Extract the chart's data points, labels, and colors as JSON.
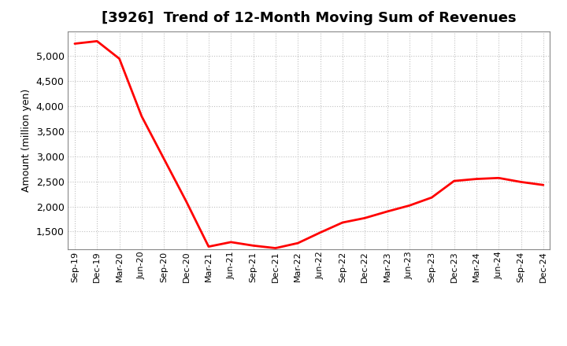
{
  "title": "[3926]  Trend of 12-Month Moving Sum of Revenues",
  "ylabel": "Amount (million yen)",
  "line_color": "#FF0000",
  "line_width": 2.0,
  "background_color": "#FFFFFF",
  "plot_bg_color": "#FFFFFF",
  "grid_color": "#BBBBBB",
  "ylim": [
    1150,
    5500
  ],
  "yticks": [
    1500,
    2000,
    2500,
    3000,
    3500,
    4000,
    4500,
    5000
  ],
  "x_labels": [
    "Sep-19",
    "Dec-19",
    "Mar-20",
    "Jun-20",
    "Sep-20",
    "Dec-20",
    "Mar-21",
    "Jun-21",
    "Sep-21",
    "Dec-21",
    "Mar-22",
    "Jun-22",
    "Sep-22",
    "Dec-22",
    "Mar-23",
    "Jun-23",
    "Sep-23",
    "Dec-23",
    "Mar-24",
    "Jun-24",
    "Sep-24",
    "Dec-24"
  ],
  "values": [
    5250,
    5300,
    4950,
    3800,
    2950,
    2100,
    1200,
    1290,
    1220,
    1170,
    1270,
    1480,
    1680,
    1770,
    1900,
    2020,
    2180,
    2510,
    2550,
    2570,
    2490,
    2430
  ],
  "title_fontsize": 13,
  "ylabel_fontsize": 9,
  "tick_fontsize": 9,
  "xtick_fontsize": 8
}
